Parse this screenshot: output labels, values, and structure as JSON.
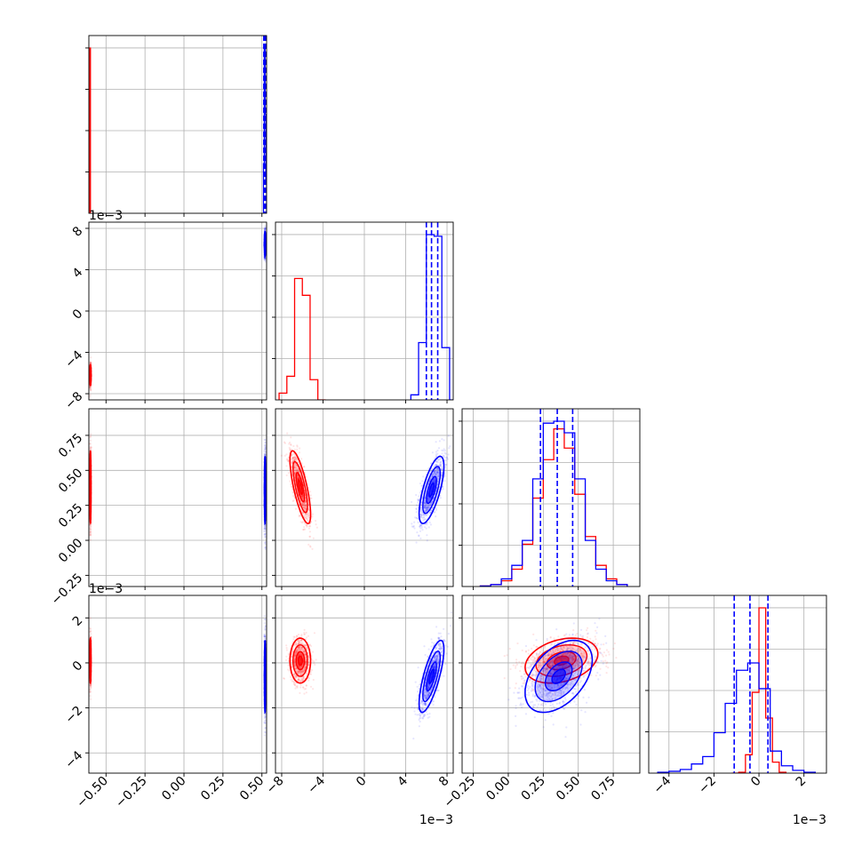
{
  "figure": {
    "type": "corner_plot",
    "offset_label": "1e−3"
  },
  "colors": {
    "series_a": "#ff0000",
    "series_b": "#0000ff",
    "grid": "#b0b0b0",
    "axis": "#000000"
  },
  "chart_data": {
    "type": "corner",
    "params": [
      {
        "name": "",
        "range": [
          -0.61,
          0.53
        ],
        "ticks": [
          -0.5,
          -0.25,
          0.0,
          0.25,
          0.5
        ],
        "tick_labels": [
          "−0.50",
          "−0.25",
          "0.00",
          "0.25",
          "0.50"
        ]
      },
      {
        "name": "",
        "range": [
          -8.6,
          8.6
        ],
        "ticks": [
          -8,
          -4,
          0,
          4,
          8
        ],
        "tick_labels": [
          "−8",
          "−4",
          "0",
          "4",
          "8"
        ],
        "offset_text": "1e−3"
      },
      {
        "name": "",
        "range": [
          -0.33,
          0.94
        ],
        "ticks": [
          -0.25,
          0.0,
          0.25,
          0.5,
          0.75
        ],
        "tick_labels": [
          "−0.25",
          "0.00",
          "0.25",
          "0.50",
          "0.75"
        ]
      },
      {
        "name": "",
        "range": [
          -4.9,
          3.0
        ],
        "ticks": [
          -4,
          -2,
          0,
          2
        ],
        "tick_labels": [
          "−4",
          "−2",
          "0",
          "2"
        ],
        "offset_text": "1e−3"
      }
    ],
    "series": [
      {
        "id": "a",
        "color": "#ff0000",
        "center": [
          -0.6,
          -6.2,
          0.38,
          0.1
        ],
        "spread": [
          0.002,
          0.5,
          0.13,
          0.5
        ],
        "quantiles": null,
        "hist": [
          {
            "bins": [
              -0.61,
              -0.605,
              -0.6,
              -0.595
            ],
            "counts": [
              0,
              100,
              0
            ]
          },
          {
            "bins": [
              -8.25,
              -7.5,
              -6.75,
              -6.0,
              -5.25,
              -4.5,
              -3.75
            ],
            "counts": [
              4,
              14,
              72,
              62,
              12,
              0
            ]
          },
          {
            "bins": [
              -0.2,
              -0.125,
              -0.05,
              0.025,
              0.1,
              0.175,
              0.25,
              0.325,
              0.4,
              0.475,
              0.55,
              0.625,
              0.7,
              0.775,
              0.85
            ],
            "counts": [
              0.3,
              1,
              3,
              9,
              22,
              46,
              66,
              82,
              72,
              48,
              26,
              11,
              4,
              1
            ]
          },
          {
            "bins": [
              -1.2,
              -0.9,
              -0.6,
              -0.3,
              0.0,
              0.3,
              0.6,
              0.9,
              1.2
            ],
            "counts": [
              0,
              0.5,
              10,
              44,
              90,
              30,
              6,
              0.5
            ]
          }
        ]
      },
      {
        "id": "b",
        "color": "#0000ff",
        "center": [
          0.52,
          6.5,
          0.36,
          -0.6
        ],
        "spread": [
          0.002,
          0.6,
          0.12,
          0.8
        ],
        "quantiles": [
          [
            0.512,
            0.52,
            0.528
          ],
          [
            6.0,
            6.5,
            7.1
          ],
          [
            0.23,
            0.35,
            0.46
          ],
          [
            -1.1,
            -0.4,
            0.4
          ]
        ],
        "hist": [
          {
            "bins": [
              0.51,
              0.515,
              0.52,
              0.525,
              0.53
            ],
            "counts": [
              30,
              100,
              60,
              20
            ]
          },
          {
            "bins": [
              4.5,
              5.25,
              6.0,
              6.75,
              7.5,
              8.25,
              9.0
            ],
            "counts": [
              3,
              34,
              98,
              97,
              31,
              0
            ]
          },
          {
            "bins": [
              -0.2,
              -0.125,
              -0.05,
              0.025,
              0.1,
              0.175,
              0.25,
              0.325,
              0.4,
              0.475,
              0.55,
              0.625,
              0.7,
              0.775,
              0.85
            ],
            "counts": [
              0.3,
              1,
              4,
              11,
              24,
              56,
              85,
              86,
              80,
              56,
              24,
              9,
              3,
              1
            ]
          },
          {
            "bins": [
              -4.5,
              -4.0,
              -3.5,
              -3.0,
              -2.5,
              -2.0,
              -1.5,
              -1.0,
              -0.5,
              0.0,
              0.5,
              1.0,
              1.5,
              2.0,
              2.5
            ],
            "counts": [
              0.5,
              1,
              2,
              5,
              9,
              22,
              38,
              56,
              60,
              46,
              12,
              4,
              1.5,
              0.5
            ]
          }
        ]
      }
    ],
    "grid": true
  }
}
